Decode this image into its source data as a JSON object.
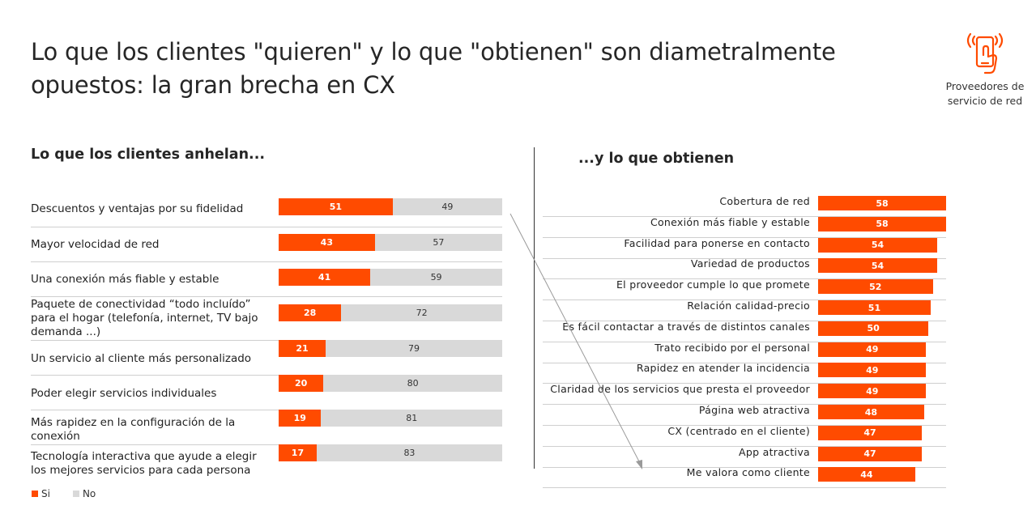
{
  "title": "Lo que los clientes \"quieren\" y lo que \"obtienen\" son diametralmente opuestos: la gran brecha en CX",
  "badge": {
    "label": "Proveedores de servicio de red",
    "icon": "phone-touch-icon",
    "color": "#ff4b00"
  },
  "left_subtitle": "Lo que los clientes anhelan...",
  "right_subtitle": "...y lo que obtienen",
  "colors": {
    "yes": "#ff4b00",
    "no": "#d9d9d9"
  },
  "legend": {
    "yes": "Si",
    "no": "No"
  },
  "chart_data": [
    {
      "type": "bar",
      "orientation": "horizontal",
      "stacked": true,
      "title": "Lo que los clientes anhelan...",
      "categories": [
        "Descuentos y ventajas por su fidelidad",
        "Mayor velocidad de red",
        "Una conexión más fiable y estable",
        "Paquete de conectividad “todo incluído” para el hogar (telefonía, internet, TV bajo demanda ...)",
        "Un servicio al cliente más personalizado",
        "Poder elegir servicios individuales",
        "Más rapidez en la configuración de la conexión",
        "Tecnología interactiva que ayude a elegir los mejores servicios para cada persona"
      ],
      "series": [
        {
          "name": "Si",
          "values": [
            51,
            43,
            41,
            28,
            21,
            20,
            19,
            17
          ]
        },
        {
          "name": "No",
          "values": [
            49,
            57,
            59,
            72,
            79,
            80,
            81,
            83
          ]
        }
      ],
      "xlim": [
        0,
        100
      ],
      "legend_position": "bottom-left"
    },
    {
      "type": "bar",
      "orientation": "horizontal",
      "title": "...y lo que obtienen",
      "categories": [
        "Cobertura de red",
        "Conexión más fiable y estable",
        "Facilidad para ponerse en contacto",
        "Variedad de productos",
        "El proveedor cumple lo que promete",
        "Relación calidad-precio",
        "Es fácil contactar a través de distintos canales",
        "Trato recibido por el personal",
        "Rapidez en atender la incidencia",
        "Claridad de los servicios que presta el proveedor",
        "Página web atractiva",
        "CX (centrado en el cliente)",
        "App atractiva",
        "Me valora como cliente"
      ],
      "values": [
        58,
        58,
        54,
        54,
        52,
        51,
        50,
        49,
        49,
        49,
        48,
        47,
        47,
        44
      ]
    }
  ]
}
